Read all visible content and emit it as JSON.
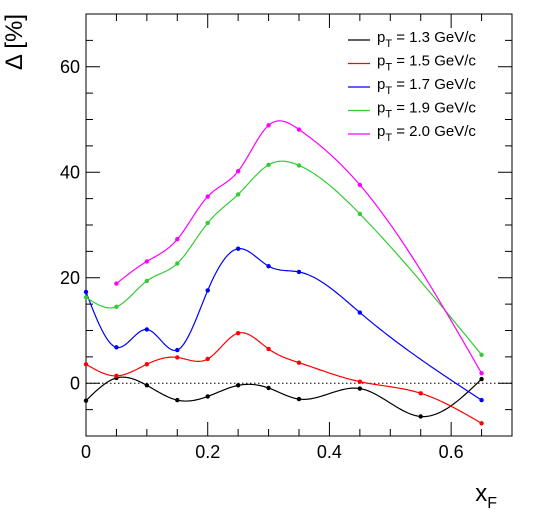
{
  "chart_data": {
    "type": "line",
    "xlabel": "x",
    "xlabel_sub": "F",
    "ylabel": "Δ [%]",
    "xlim": [
      0,
      0.7
    ],
    "ylim": [
      -10,
      70
    ],
    "x_ticks": [
      {
        "v": 0,
        "label": "0"
      },
      {
        "v": 0.2,
        "label": "0.2"
      },
      {
        "v": 0.4,
        "label": "0.4"
      },
      {
        "v": 0.6,
        "label": "0.6"
      }
    ],
    "y_ticks": [
      {
        "v": 0,
        "label": "0"
      },
      {
        "v": 20,
        "label": "20"
      },
      {
        "v": 40,
        "label": "40"
      },
      {
        "v": 60,
        "label": "60"
      }
    ],
    "reference_line": {
      "y": 0,
      "style": "dotted"
    },
    "grid": false,
    "legend_position": "top-right",
    "series": [
      {
        "name": "p_T = 1.3 GeV/c",
        "legend_main": "p",
        "legend_sub": "T",
        "legend_rest": " = 1.3 GeV/c",
        "color": "#000000",
        "x": [
          0,
          0.05,
          0.1,
          0.15,
          0.2,
          0.25,
          0.3,
          0.35,
          0.45,
          0.55,
          0.65
        ],
        "y": [
          -3.3,
          1.0,
          -0.4,
          -3.2,
          -2.5,
          -0.4,
          -0.9,
          -3.0,
          -1.0,
          -6.3,
          0.8
        ]
      },
      {
        "name": "p_T = 1.5 GeV/c",
        "legend_main": "p",
        "legend_sub": "T",
        "legend_rest": " = 1.5 GeV/c",
        "color": "#ff0000",
        "x": [
          0,
          0.05,
          0.1,
          0.15,
          0.2,
          0.25,
          0.3,
          0.35,
          0.45,
          0.55,
          0.65
        ],
        "y": [
          3.6,
          1.4,
          3.6,
          4.9,
          4.6,
          9.5,
          6.5,
          3.9,
          0.3,
          -1.9,
          -7.6
        ]
      },
      {
        "name": "p_T = 1.7 GeV/c",
        "legend_main": "p",
        "legend_sub": "T",
        "legend_rest": " = 1.7 GeV/c",
        "color": "#0000ff",
        "x": [
          0,
          0.05,
          0.1,
          0.15,
          0.2,
          0.25,
          0.3,
          0.35,
          0.45,
          0.65
        ],
        "y": [
          17.3,
          6.8,
          10.2,
          6.3,
          17.6,
          25.5,
          22.2,
          21.1,
          13.4,
          -3.2
        ]
      },
      {
        "name": "p_T = 1.9 GeV/c",
        "legend_main": "p",
        "legend_sub": "T",
        "legend_rest": " = 1.9 GeV/c",
        "color": "#33cc33",
        "x": [
          0,
          0.05,
          0.1,
          0.15,
          0.2,
          0.25,
          0.3,
          0.35,
          0.45,
          0.65
        ],
        "y": [
          16.3,
          14.5,
          19.4,
          22.7,
          30.4,
          35.8,
          41.4,
          41.3,
          32.1,
          5.4
        ]
      },
      {
        "name": "p_T = 2.0 GeV/c",
        "legend_main": "p",
        "legend_sub": "T",
        "legend_rest": " = 2.0 GeV/c",
        "color": "#ff00ff",
        "x": [
          0.05,
          0.1,
          0.15,
          0.2,
          0.25,
          0.3,
          0.35,
          0.45,
          0.65
        ],
        "y": [
          18.9,
          23.1,
          27.3,
          35.4,
          40.2,
          48.9,
          48.1,
          37.6,
          1.9
        ]
      }
    ]
  }
}
